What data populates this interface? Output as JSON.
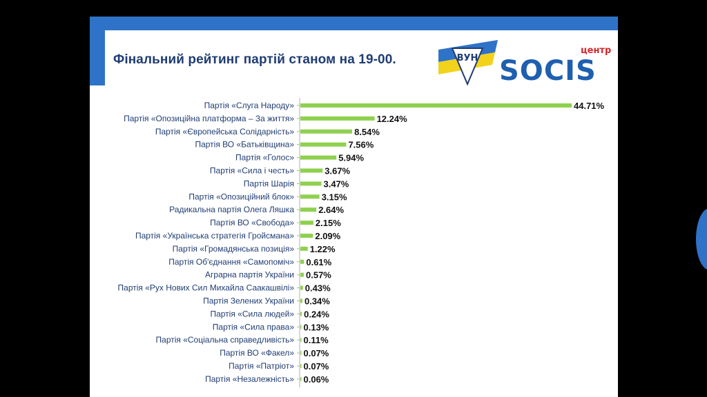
{
  "slide": {
    "title": "Фінальний рейтинг партій станом на 19-00.",
    "logo_text": "SOCIS",
    "logo_small_text": "центр",
    "logo_left_letters": "ВУН"
  },
  "chart_data": {
    "type": "bar",
    "orientation": "horizontal",
    "title": "Фінальний рейтинг партій станом на 19-00.",
    "xlabel": "",
    "ylabel": "",
    "unit": "%",
    "grid": false,
    "bar_color": "#8fd14f",
    "xlim": [
      0,
      44.71
    ],
    "categories": [
      "Партія «Слуга Народу»",
      "Партія «Опозиційна платформа – За життя»",
      "Партія «Європейська Солідарність»",
      "Партія ВО «Батьківщина»",
      "Партія «Голос»",
      "Партія «Сила і честь»",
      "Партія Шарія",
      "Партія «Опозиційний блок»",
      "Радикальна партія Олега Ляшка",
      "Партія ВО «Свобода»",
      "Партія «Українська стратегія Гройсмана»",
      "Партія «Громадянська позиція»",
      "Партія Об'єднання «Самопоміч»",
      "Аграрна партія України",
      "Партія «Рух Нових Сил Михайла Саакашвілі»",
      "Партія Зелених України",
      "Партія «Сила людей»",
      "Партія «Сила права»",
      "Партія «Соціальна справедливість»",
      "Партія ВО «Факел»",
      "Партія «Патріот»",
      "Партія «Незалежність»"
    ],
    "values": [
      44.71,
      12.24,
      8.54,
      7.56,
      5.94,
      3.67,
      3.47,
      3.15,
      2.64,
      2.15,
      2.09,
      1.22,
      0.61,
      0.57,
      0.43,
      0.34,
      0.24,
      0.13,
      0.11,
      0.07,
      0.07,
      0.06
    ],
    "value_labels": [
      "44.71%",
      "12.24%",
      "8.54%",
      "7.56%",
      "5.94%",
      "3.67%",
      "3.47%",
      "3.15%",
      "2.64%",
      "2.15%",
      "2.09%",
      "1.22%",
      "0.61%",
      "0.57%",
      "0.43%",
      "0.34%",
      "0.24%",
      "0.13%",
      "0.11%",
      "0.07%",
      "0.07%",
      "0.06%"
    ]
  }
}
